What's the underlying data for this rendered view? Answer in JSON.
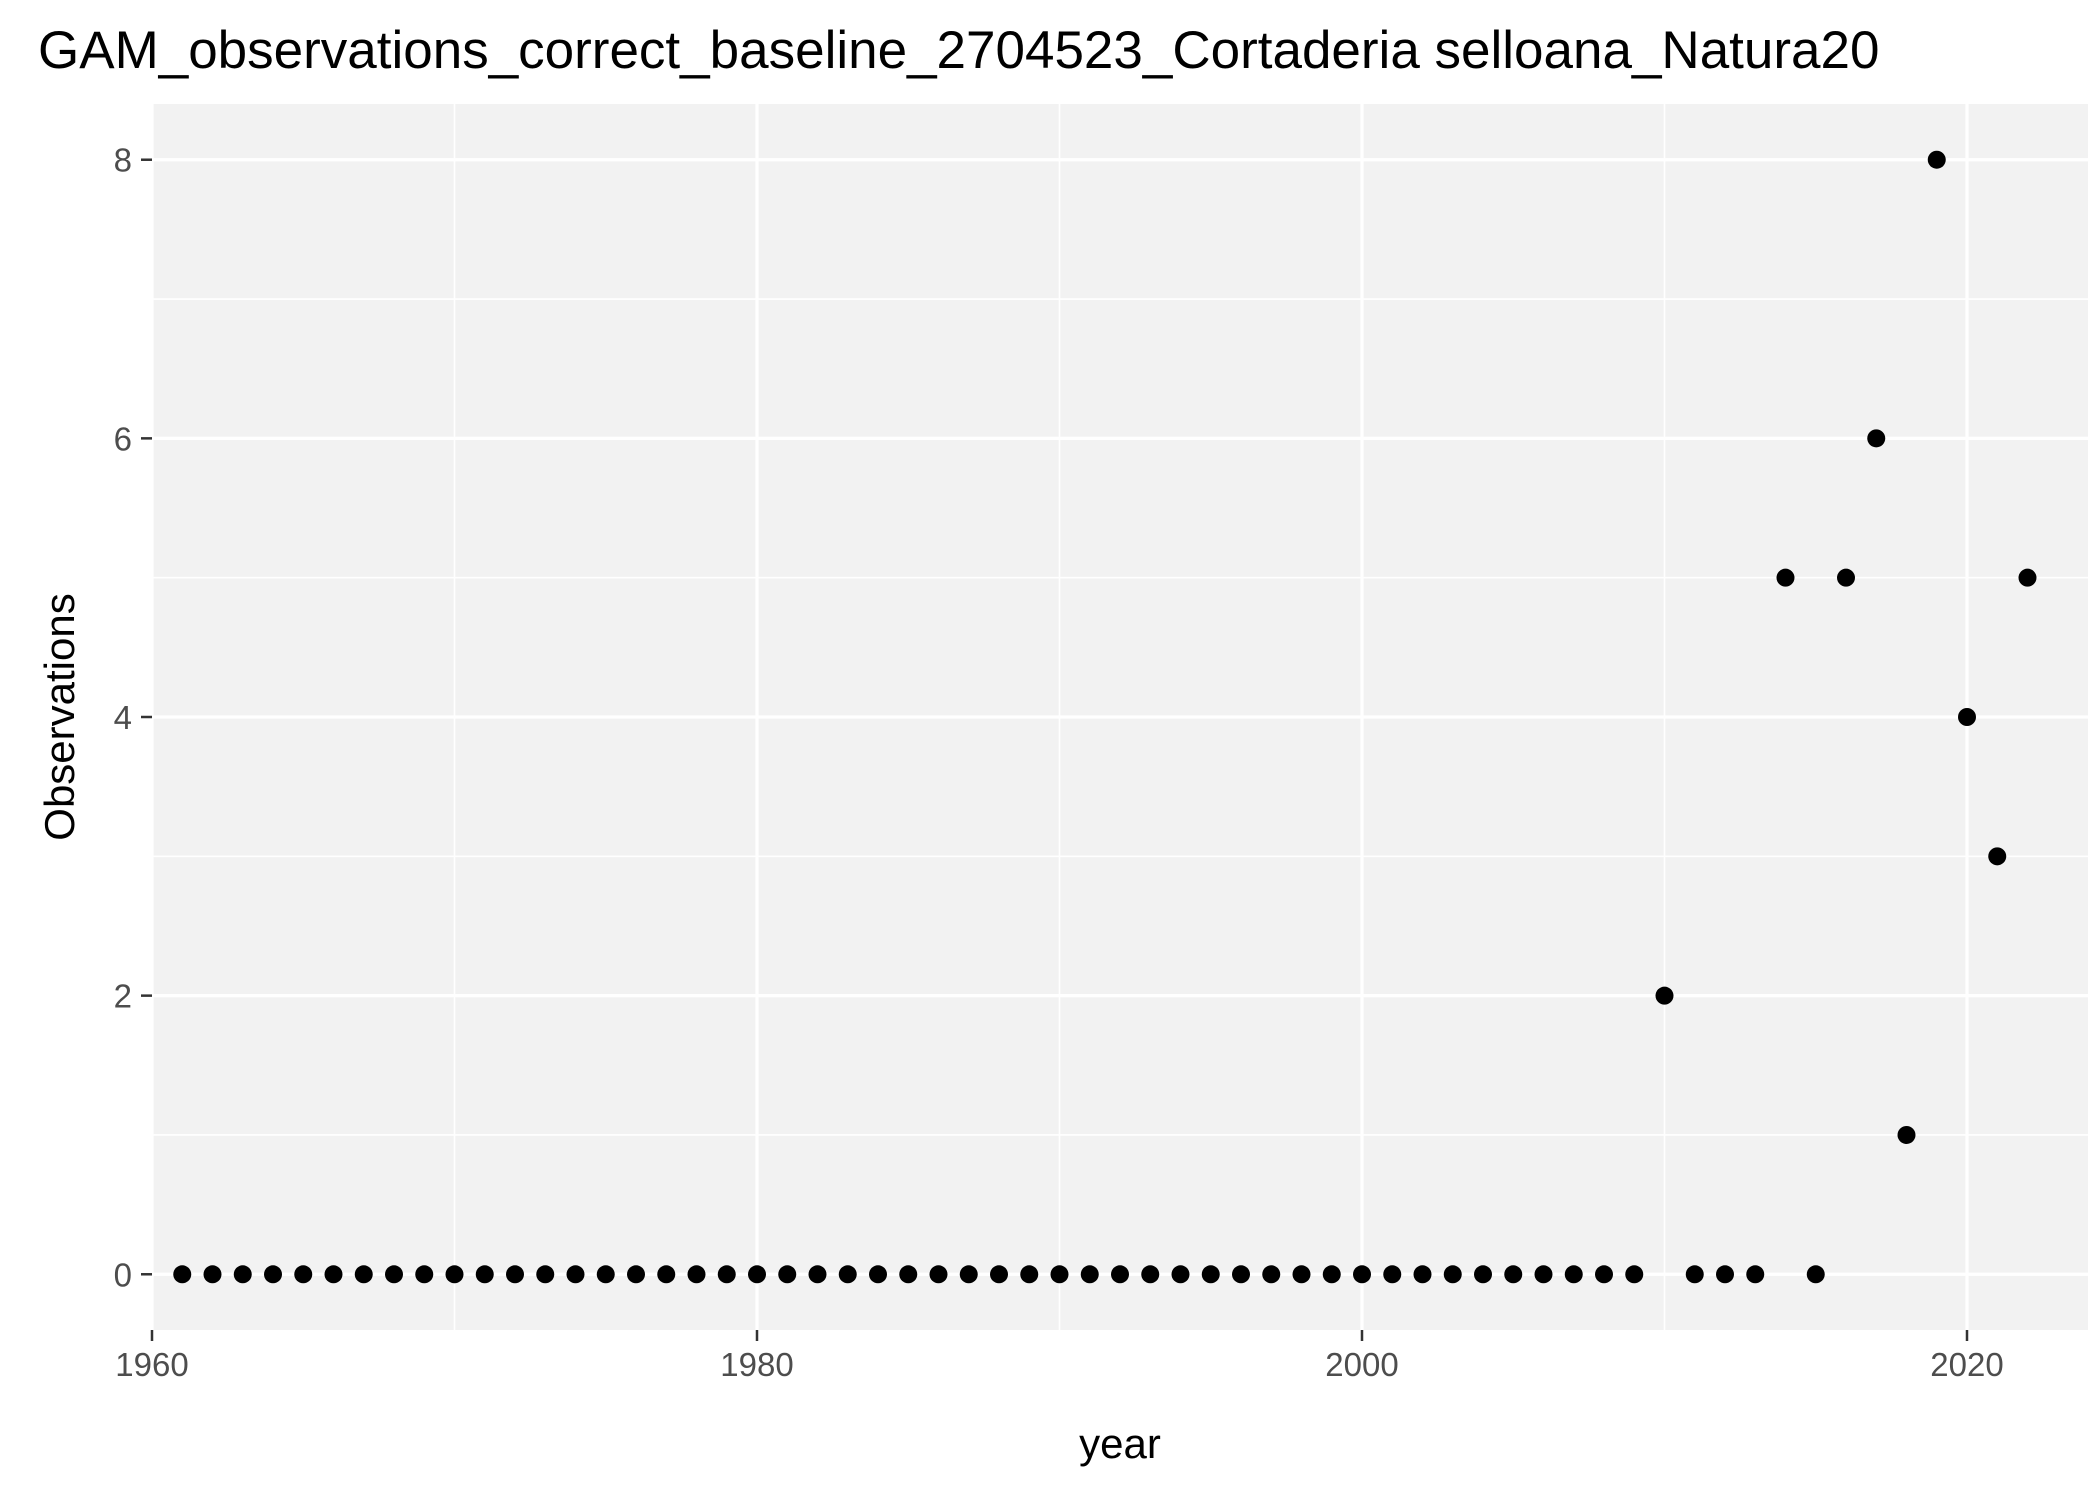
{
  "chart_data": {
    "type": "scatter",
    "title": "GAM_observations_correct_baseline_2704523_Cortaderia selloana_Natura20",
    "xlabel": "year",
    "ylabel": "Observations",
    "xlim": [
      1960,
      2024
    ],
    "ylim": [
      -0.4,
      8.4
    ],
    "x_ticks": [
      1960,
      1980,
      2000,
      2020
    ],
    "y_ticks": [
      0,
      2,
      4,
      6,
      8
    ],
    "grid": true,
    "background": "#f2f2f2",
    "grid_color": "#ffffff",
    "point_color": "#000000",
    "points": [
      {
        "x": 1961,
        "y": 0
      },
      {
        "x": 1962,
        "y": 0
      },
      {
        "x": 1963,
        "y": 0
      },
      {
        "x": 1964,
        "y": 0
      },
      {
        "x": 1965,
        "y": 0
      },
      {
        "x": 1966,
        "y": 0
      },
      {
        "x": 1967,
        "y": 0
      },
      {
        "x": 1968,
        "y": 0
      },
      {
        "x": 1969,
        "y": 0
      },
      {
        "x": 1970,
        "y": 0
      },
      {
        "x": 1971,
        "y": 0
      },
      {
        "x": 1972,
        "y": 0
      },
      {
        "x": 1973,
        "y": 0
      },
      {
        "x": 1974,
        "y": 0
      },
      {
        "x": 1975,
        "y": 0
      },
      {
        "x": 1976,
        "y": 0
      },
      {
        "x": 1977,
        "y": 0
      },
      {
        "x": 1978,
        "y": 0
      },
      {
        "x": 1979,
        "y": 0
      },
      {
        "x": 1980,
        "y": 0
      },
      {
        "x": 1981,
        "y": 0
      },
      {
        "x": 1982,
        "y": 0
      },
      {
        "x": 1983,
        "y": 0
      },
      {
        "x": 1984,
        "y": 0
      },
      {
        "x": 1985,
        "y": 0
      },
      {
        "x": 1986,
        "y": 0
      },
      {
        "x": 1987,
        "y": 0
      },
      {
        "x": 1988,
        "y": 0
      },
      {
        "x": 1989,
        "y": 0
      },
      {
        "x": 1990,
        "y": 0
      },
      {
        "x": 1991,
        "y": 0
      },
      {
        "x": 1992,
        "y": 0
      },
      {
        "x": 1993,
        "y": 0
      },
      {
        "x": 1994,
        "y": 0
      },
      {
        "x": 1995,
        "y": 0
      },
      {
        "x": 1996,
        "y": 0
      },
      {
        "x": 1997,
        "y": 0
      },
      {
        "x": 1998,
        "y": 0
      },
      {
        "x": 1999,
        "y": 0
      },
      {
        "x": 2000,
        "y": 0
      },
      {
        "x": 2001,
        "y": 0
      },
      {
        "x": 2002,
        "y": 0
      },
      {
        "x": 2003,
        "y": 0
      },
      {
        "x": 2004,
        "y": 0
      },
      {
        "x": 2005,
        "y": 0
      },
      {
        "x": 2006,
        "y": 0
      },
      {
        "x": 2007,
        "y": 0
      },
      {
        "x": 2008,
        "y": 0
      },
      {
        "x": 2009,
        "y": 0
      },
      {
        "x": 2010,
        "y": 2
      },
      {
        "x": 2011,
        "y": 0
      },
      {
        "x": 2012,
        "y": 0
      },
      {
        "x": 2013,
        "y": 0
      },
      {
        "x": 2014,
        "y": 5
      },
      {
        "x": 2015,
        "y": 0
      },
      {
        "x": 2016,
        "y": 5
      },
      {
        "x": 2017,
        "y": 6
      },
      {
        "x": 2018,
        "y": 1
      },
      {
        "x": 2019,
        "y": 8
      },
      {
        "x": 2020,
        "y": 4
      },
      {
        "x": 2021,
        "y": 3
      },
      {
        "x": 2022,
        "y": 5
      }
    ]
  }
}
